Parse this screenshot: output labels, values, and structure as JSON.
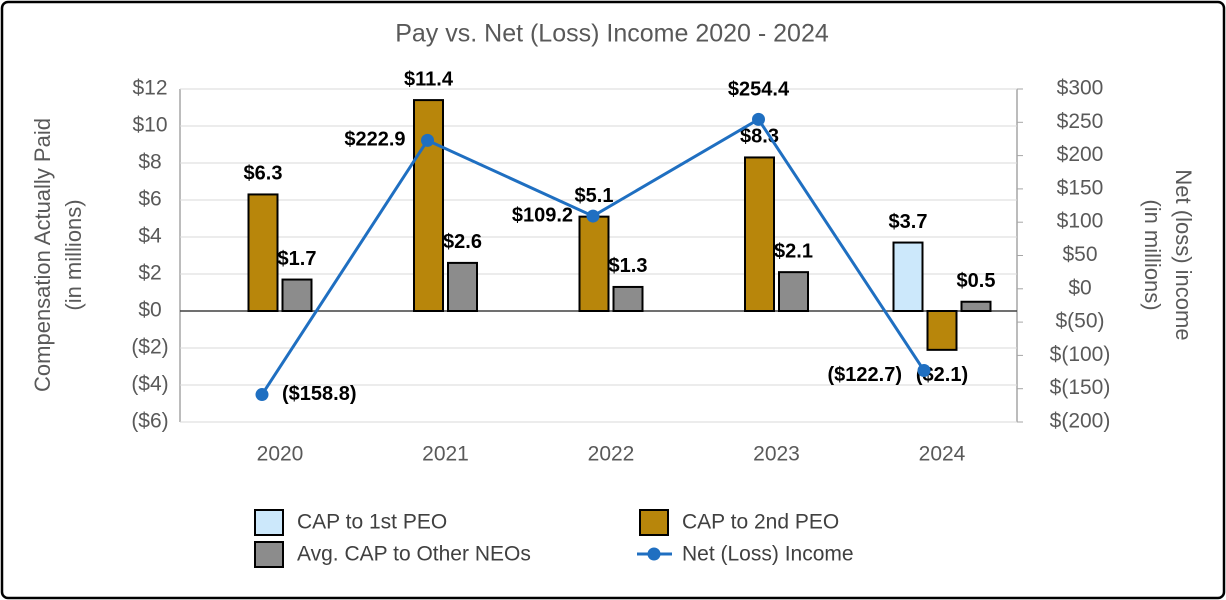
{
  "chart_data": {
    "type": "bar",
    "title": "Pay vs. Net (Loss) Income 2020 - 2024",
    "ylabel": [
      "Compensation Actually Paid",
      "(in millions)"
    ],
    "y2label": [
      "Net (loss) income",
      "(in millions)"
    ],
    "categories": [
      "2020",
      "2021",
      "2022",
      "2023",
      "2024"
    ],
    "series": [
      {
        "name": "CAP to 1st PEO",
        "type": "bar",
        "color": "#cce8fb",
        "values": [
          null,
          null,
          null,
          null,
          3.7
        ],
        "value_labels": [
          null,
          null,
          null,
          null,
          "$3.7"
        ]
      },
      {
        "name": "CAP to 2nd PEO",
        "type": "bar",
        "color": "#b8860b",
        "values": [
          6.3,
          11.4,
          5.1,
          8.3,
          -2.1
        ],
        "value_labels": [
          "$6.3",
          "$11.4",
          "$5.1",
          "$8.3",
          "($2.1)"
        ]
      },
      {
        "name": "Avg. CAP to Other NEOs",
        "type": "bar",
        "color": "#8c8c8c",
        "values": [
          1.7,
          2.6,
          1.3,
          2.1,
          0.5
        ],
        "value_labels": [
          "$1.7",
          "$2.6",
          "$1.3",
          "$2.1",
          "$0.5"
        ]
      },
      {
        "name": "Net (Loss) Income",
        "type": "line",
        "axis": "y2",
        "color": "#1f6fc1",
        "values": [
          -158.8,
          222.9,
          109.2,
          254.4,
          -122.7
        ],
        "value_labels": [
          "($158.8)",
          "$222.9",
          "$109.2",
          "$254.4",
          "($122.7)"
        ]
      }
    ],
    "ylim": [
      -6,
      12
    ],
    "yticks": [
      {
        "value": -6,
        "label": "($6)"
      },
      {
        "value": -4,
        "label": "($4)"
      },
      {
        "value": -2,
        "label": "($2)"
      },
      {
        "value": 0,
        "label": "$0"
      },
      {
        "value": 2,
        "label": "$2"
      },
      {
        "value": 4,
        "label": "$4"
      },
      {
        "value": 6,
        "label": "$6"
      },
      {
        "value": 8,
        "label": "$8"
      },
      {
        "value": 10,
        "label": "$10"
      },
      {
        "value": 12,
        "label": "$12"
      }
    ],
    "y2lim": [
      -200,
      300
    ],
    "y2ticks": [
      {
        "value": -200,
        "label": "$(200)"
      },
      {
        "value": -150,
        "label": "$(150)"
      },
      {
        "value": -100,
        "label": "$(100)"
      },
      {
        "value": -50,
        "label": "$(50)"
      },
      {
        "value": 0,
        "label": "$0"
      },
      {
        "value": 50,
        "label": "$50"
      },
      {
        "value": 100,
        "label": "$100"
      },
      {
        "value": 150,
        "label": "$150"
      },
      {
        "value": 200,
        "label": "$200"
      },
      {
        "value": 250,
        "label": "$250"
      },
      {
        "value": 300,
        "label": "$300"
      }
    ],
    "grid": true
  }
}
